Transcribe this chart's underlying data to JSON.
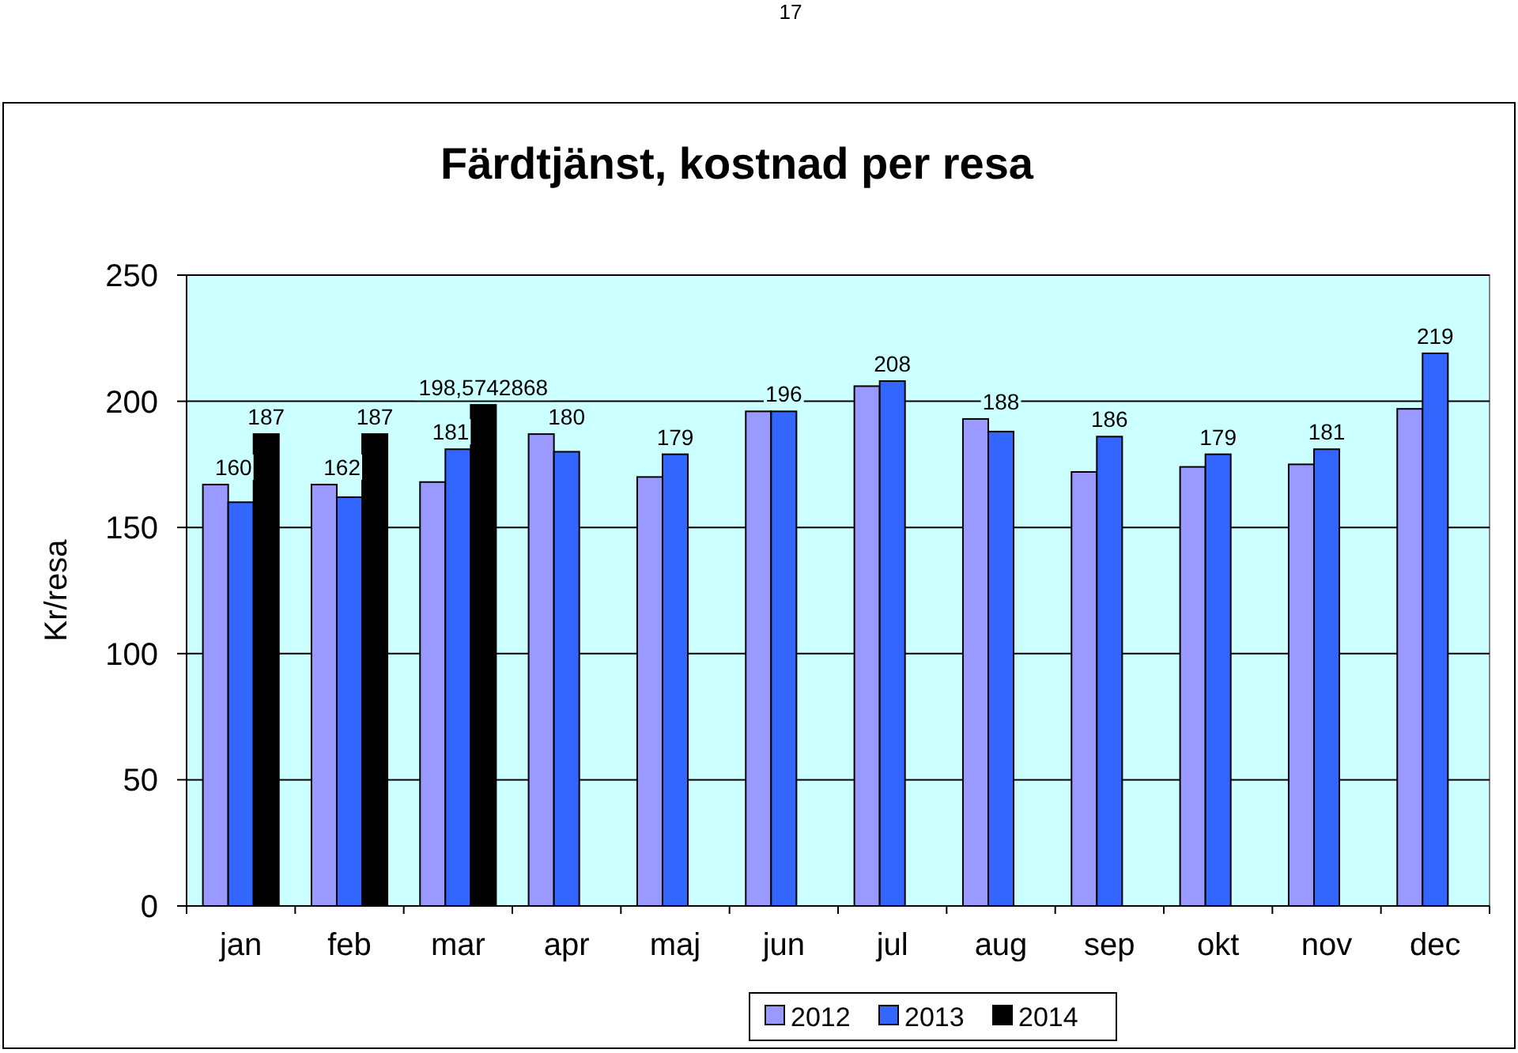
{
  "chart_data": {
    "type": "bar",
    "title": "Färdtjänst, kostnad per resa",
    "ylabel": "Kr/resa",
    "annotations": [
      "17"
    ],
    "categories": [
      "jan",
      "feb",
      "mar",
      "apr",
      "maj",
      "jun",
      "jul",
      "aug",
      "sep",
      "okt",
      "nov",
      "dec"
    ],
    "series": [
      {
        "name": "2012",
        "color": "#9999ff",
        "values": [
          167,
          167,
          168,
          187,
          170,
          196,
          206,
          193,
          172,
          174,
          175,
          197
        ]
      },
      {
        "name": "2013",
        "color": "#3366ff",
        "values": [
          160,
          162,
          181,
          180,
          179,
          196,
          208,
          188,
          186,
          179,
          181,
          219
        ],
        "value_labels": [
          "160",
          "162",
          "181",
          "180",
          "179",
          "196",
          "208",
          "188",
          "186",
          "179",
          "181",
          "219"
        ]
      },
      {
        "name": "2014",
        "color": "#000000",
        "values": [
          187,
          187,
          198.5742868,
          null,
          null,
          null,
          null,
          null,
          null,
          null,
          null,
          null
        ],
        "value_labels": [
          "187",
          "187",
          "198,5742868",
          null,
          null,
          null,
          null,
          null,
          null,
          null,
          null,
          null
        ]
      }
    ],
    "ylim": [
      0,
      250
    ],
    "yticks": [
      0,
      50,
      100,
      150,
      200,
      250
    ],
    "grid": "y",
    "legend": "bottom"
  }
}
